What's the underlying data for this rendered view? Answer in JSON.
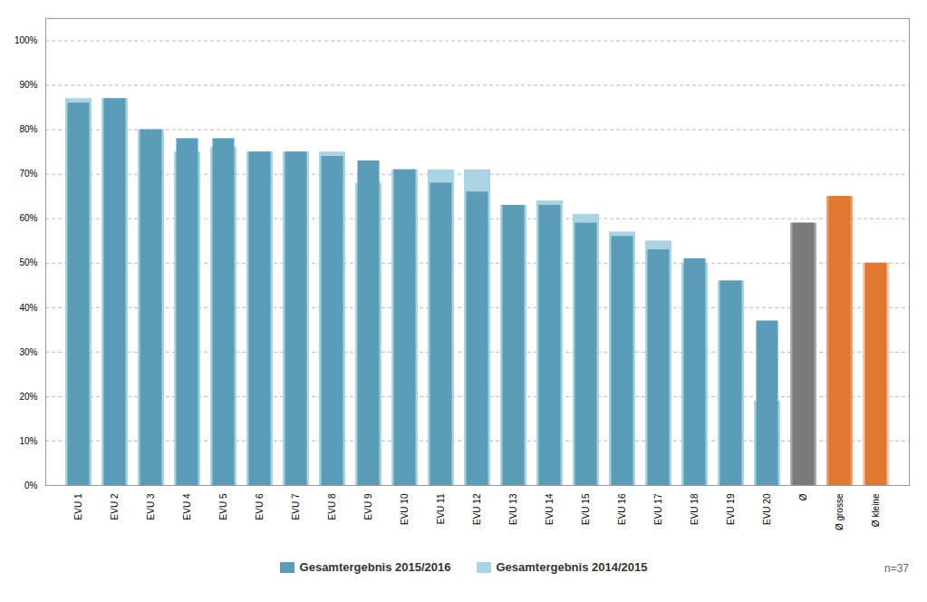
{
  "chart_data": {
    "type": "bar",
    "categories": [
      "EVU 1",
      "EVU 2",
      "EVU 3",
      "EVU 4",
      "EVU 5",
      "EVU 6",
      "EVU 7",
      "EVU 8",
      "EVU 9",
      "EVU 10",
      "EVU 11",
      "EVU 12",
      "EVU 13",
      "EVU 14",
      "EVU 15",
      "EVU 16",
      "EVU 17",
      "EVU 18",
      "EVU 19",
      "EVU 20",
      "Ø",
      "Ø grosse",
      "Ø kleine"
    ],
    "series": [
      {
        "name": "Gesamtergebnis 2015/2016",
        "color": "#5b9db8",
        "values": [
          0.86,
          0.87,
          0.8,
          0.78,
          0.78,
          0.75,
          0.75,
          0.74,
          0.73,
          0.71,
          0.68,
          0.66,
          0.63,
          0.63,
          0.59,
          0.56,
          0.53,
          0.51,
          0.46,
          0.37,
          0.59,
          0.65,
          0.5
        ],
        "colors": [
          "#5b9db8",
          "#5b9db8",
          "#5b9db8",
          "#5b9db8",
          "#5b9db8",
          "#5b9db8",
          "#5b9db8",
          "#5b9db8",
          "#5b9db8",
          "#5b9db8",
          "#5b9db8",
          "#5b9db8",
          "#5b9db8",
          "#5b9db8",
          "#5b9db8",
          "#5b9db8",
          "#5b9db8",
          "#5b9db8",
          "#5b9db8",
          "#5b9db8",
          "#7a7a7a",
          "#e07832",
          "#e07832"
        ]
      },
      {
        "name": "Gesamtergebnis 2014/2015",
        "color": "#aad3e3",
        "values": [
          0.87,
          0.87,
          0.8,
          0.75,
          0.76,
          0.75,
          0.75,
          0.75,
          0.68,
          0.71,
          0.71,
          0.71,
          0.63,
          0.64,
          0.61,
          0.57,
          0.55,
          0.5,
          0.46,
          0.19,
          0.59,
          0.65,
          0.5
        ],
        "colors": [
          "#aad3e3",
          "#aad3e3",
          "#aad3e3",
          "#aad3e3",
          "#aad3e3",
          "#aad3e3",
          "#aad3e3",
          "#aad3e3",
          "#aad3e3",
          "#aad3e3",
          "#aad3e3",
          "#aad3e3",
          "#aad3e3",
          "#aad3e3",
          "#aad3e3",
          "#aad3e3",
          "#aad3e3",
          "#aad3e3",
          "#aad3e3",
          "#aad3e3",
          "#aaaaaa",
          "#eca070",
          "#f5c8a8"
        ]
      }
    ],
    "ylim": [
      0,
      1.05
    ],
    "yticks": [
      {
        "value": 0.0,
        "label": "0%"
      },
      {
        "value": 0.1,
        "label": "10%"
      },
      {
        "value": 0.2,
        "label": "20%"
      },
      {
        "value": 0.3,
        "label": "30%"
      },
      {
        "value": 0.4,
        "label": "40%"
      },
      {
        "value": 0.5,
        "label": "50%"
      },
      {
        "value": 0.6,
        "label": "60%"
      },
      {
        "value": 0.7,
        "label": "70%"
      },
      {
        "value": 0.8,
        "label": "80%"
      },
      {
        "value": 0.9,
        "label": "90%"
      },
      {
        "value": 1.0,
        "label": "100%"
      }
    ],
    "grid": true,
    "legend": "bottom",
    "annotations": [
      "n=37"
    ]
  }
}
